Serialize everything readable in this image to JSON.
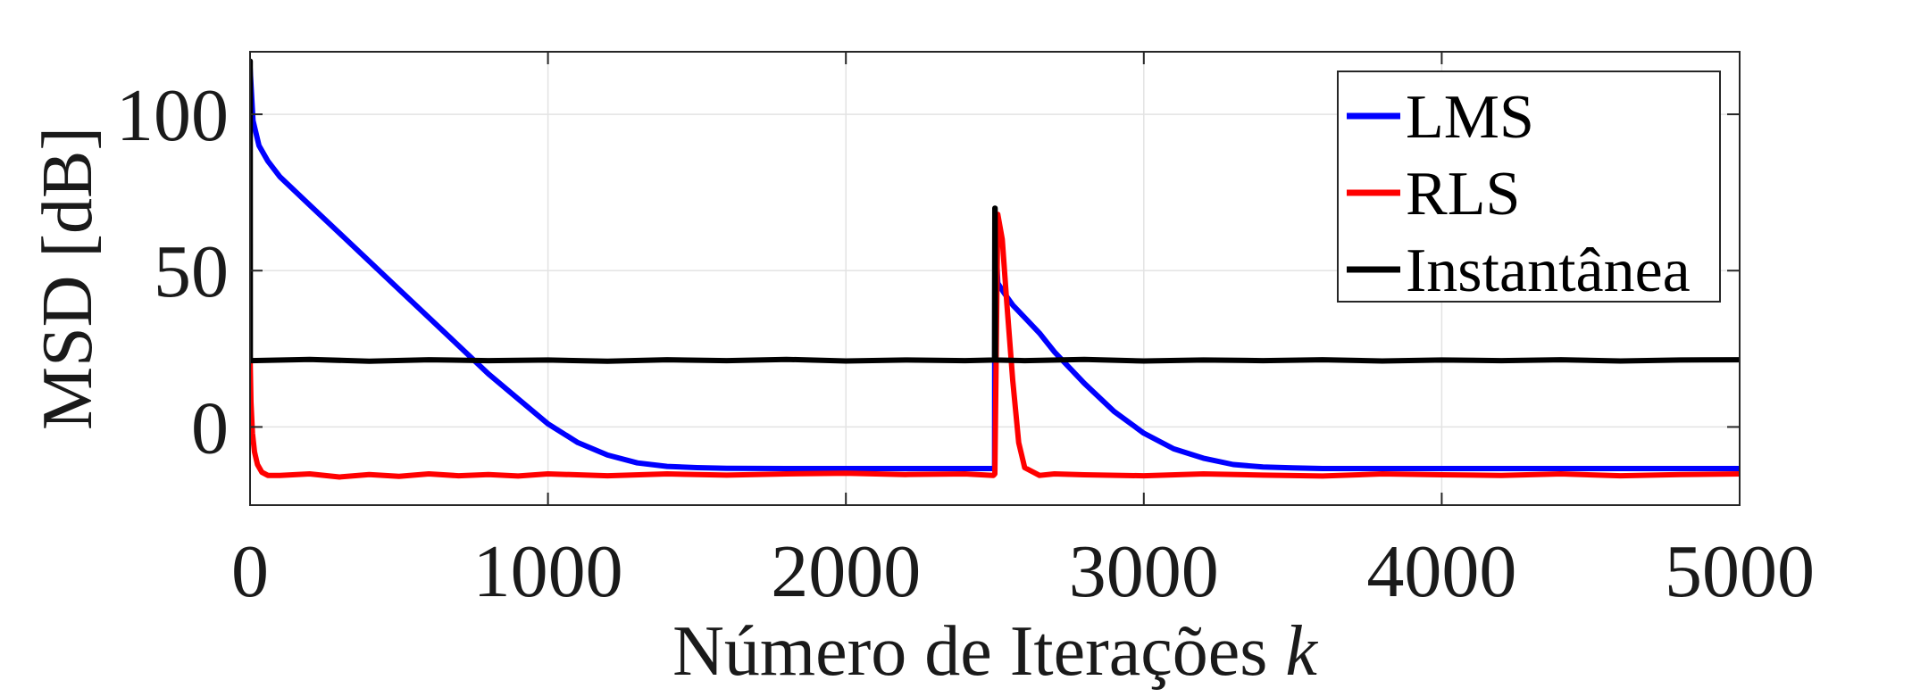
{
  "chart_data": {
    "type": "line",
    "xlabel": "Número de Iterações",
    "xlabel_var": "k",
    "ylabel": "MSD [dB]",
    "xlim": [
      0,
      5000
    ],
    "ylim": [
      -25,
      120
    ],
    "xticks": [
      0,
      1000,
      2000,
      3000,
      4000,
      5000
    ],
    "xtick_labels": [
      "0",
      "1000",
      "2000",
      "3000",
      "4000",
      "5000"
    ],
    "yticks": [
      0,
      50,
      100
    ],
    "ytick_labels": [
      "0",
      "50",
      "100"
    ],
    "grid": true,
    "legend_position": "top-right",
    "series": [
      {
        "name": "LMS",
        "color": "#0000ff",
        "x": [
          0,
          10,
          30,
          60,
          100,
          200,
          300,
          400,
          500,
          600,
          700,
          800,
          900,
          1000,
          1100,
          1200,
          1300,
          1400,
          1500,
          1600,
          1800,
          2000,
          2200,
          2400,
          2499,
          2500,
          2510,
          2530,
          2560,
          2600,
          2650,
          2700,
          2800,
          2900,
          3000,
          3100,
          3200,
          3300,
          3400,
          3500,
          3600,
          3800,
          4000,
          4200,
          4400,
          4600,
          4800,
          5000
        ],
        "y": [
          115,
          98,
          90,
          85,
          80,
          71,
          62,
          53,
          44,
          35,
          26,
          17,
          9,
          1,
          -5,
          -9,
          -11.5,
          -12.6,
          -13,
          -13.2,
          -13.3,
          -13.3,
          -13.3,
          -13.3,
          -13.3,
          67,
          46,
          43,
          39,
          35,
          30,
          24,
          14,
          5,
          -2,
          -7,
          -10,
          -12,
          -12.8,
          -13.1,
          -13.3,
          -13.3,
          -13.3,
          -13.3,
          -13.3,
          -13.3,
          -13.3,
          -13.3
        ]
      },
      {
        "name": "RLS",
        "color": "#ff0000",
        "x": [
          0,
          3,
          8,
          15,
          25,
          40,
          60,
          100,
          200,
          300,
          400,
          500,
          600,
          700,
          800,
          900,
          1000,
          1200,
          1400,
          1600,
          1800,
          2000,
          2200,
          2400,
          2495,
          2500,
          2510,
          2525,
          2540,
          2560,
          2580,
          2600,
          2650,
          2700,
          2800,
          3000,
          3200,
          3400,
          3600,
          3800,
          4000,
          4200,
          4400,
          4600,
          4800,
          5000
        ],
        "y": [
          23,
          8,
          -2,
          -8,
          -12,
          -14.5,
          -15.5,
          -15.5,
          -15,
          -16,
          -15.2,
          -15.8,
          -15,
          -15.6,
          -15.2,
          -15.7,
          -15,
          -15.6,
          -15,
          -15.4,
          -15,
          -14.8,
          -15.2,
          -15,
          -15.5,
          -15,
          68,
          60,
          40,
          15,
          -5,
          -13,
          -15.5,
          -15,
          -15.3,
          -15.6,
          -15,
          -15.4,
          -15.7,
          -15,
          -15.3,
          -15.5,
          -15,
          -15.6,
          -15.2,
          -15
        ]
      },
      {
        "name": "Instantânea",
        "color": "#000000",
        "x": [
          0,
          0.5,
          1,
          2,
          200,
          400,
          600,
          800,
          1000,
          1200,
          1400,
          1600,
          1800,
          2000,
          2200,
          2400,
          2499,
          2500,
          2501,
          2502,
          2600,
          2800,
          3000,
          3200,
          3400,
          3600,
          3800,
          4000,
          4200,
          4400,
          4600,
          4800,
          5000
        ],
        "y": [
          117,
          117,
          21.5,
          21.2,
          21.6,
          21.0,
          21.5,
          21.2,
          21.4,
          21.0,
          21.5,
          21.2,
          21.6,
          21.1,
          21.4,
          21.2,
          21.4,
          70,
          70,
          21.4,
          21.2,
          21.6,
          21.1,
          21.4,
          21.2,
          21.5,
          21.1,
          21.4,
          21.2,
          21.5,
          21.1,
          21.4,
          21.5
        ]
      }
    ]
  }
}
